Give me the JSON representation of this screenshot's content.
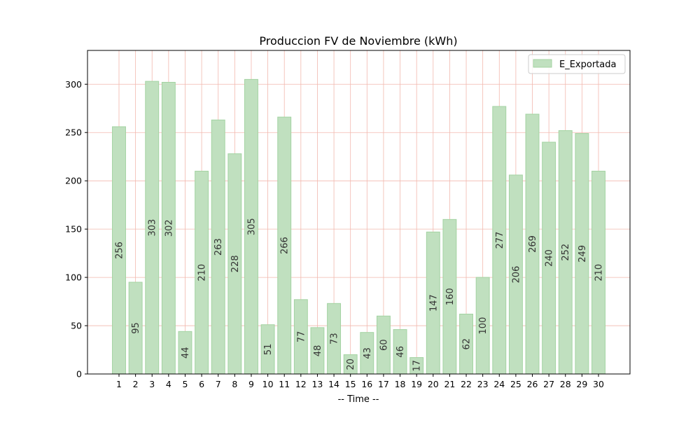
{
  "chart_data": {
    "type": "bar",
    "title": "Produccion FV de Noviembre (kWh)",
    "xlabel": "-- Time --",
    "ylabel": "",
    "ylim": [
      0,
      335
    ],
    "yticks": [
      0,
      50,
      100,
      150,
      200,
      250,
      300
    ],
    "grid": true,
    "legend_position": "top-right",
    "categories": [
      "1",
      "2",
      "3",
      "4",
      "5",
      "6",
      "7",
      "8",
      "9",
      "10",
      "11",
      "12",
      "13",
      "14",
      "15",
      "16",
      "17",
      "18",
      "19",
      "20",
      "21",
      "22",
      "23",
      "24",
      "25",
      "26",
      "27",
      "28",
      "29",
      "30"
    ],
    "series": [
      {
        "name": "E_Exportada",
        "color": "#c0e0bf",
        "values": [
          256,
          95,
          303,
          302,
          44,
          210,
          263,
          228,
          305,
          51,
          266,
          77,
          48,
          73,
          20,
          43,
          60,
          46,
          17,
          147,
          160,
          62,
          100,
          277,
          206,
          269,
          240,
          252,
          249,
          210
        ]
      }
    ]
  }
}
